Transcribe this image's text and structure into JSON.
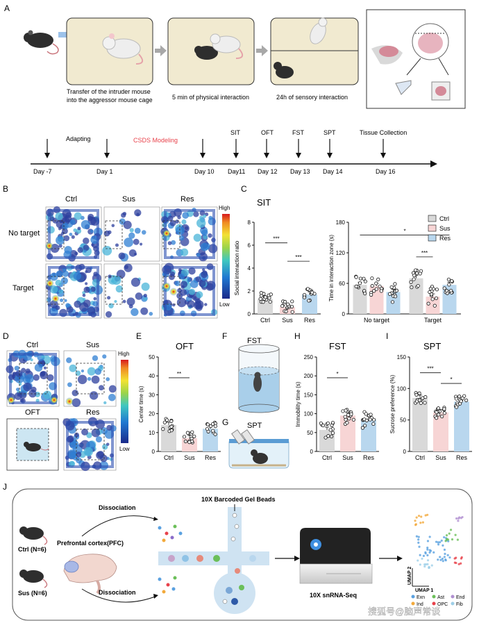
{
  "panels": {
    "A": {
      "letter": "A",
      "step1": [
        "Transfer of the intruder mouse",
        "into the aggressor mouse cage"
      ],
      "step2": "5 min of physical interaction",
      "step3": "24h of sensory interaction",
      "timeline": {
        "top_labels": [
          "Adapting",
          "CSDS Modeling",
          "SIT",
          "OFT",
          "FST",
          "SPT",
          "Tissue Collection"
        ],
        "days": [
          "Day -7",
          "Day 1",
          "Day 10",
          "Day11",
          "Day 12",
          "Day 13",
          "Day 14",
          "Day 16"
        ]
      }
    },
    "B": {
      "letter": "B",
      "cols": [
        "Ctrl",
        "Sus",
        "Res"
      ],
      "rows": [
        "No target",
        "Target"
      ],
      "scale_high": "High",
      "scale_low": "Low"
    },
    "C": {
      "letter": "C",
      "title": "SIT"
    },
    "D": {
      "letter": "D",
      "labels": [
        "Ctrl",
        "Sus",
        "OFT",
        "Res"
      ],
      "scale_high": "High",
      "scale_low": "Low"
    },
    "E": {
      "letter": "E",
      "title": "OFT"
    },
    "F": {
      "letter": "F",
      "title": "FST"
    },
    "G": {
      "letter": "G",
      "title": "SPT"
    },
    "H": {
      "letter": "H",
      "title": "FST"
    },
    "I": {
      "letter": "I",
      "title": "SPT"
    },
    "J": {
      "letter": "J",
      "ctrl_label": "Ctrl (N=6)",
      "sus_label": "Sus (N=6)",
      "pfc_label": "Prefrontal cortex(PFC)",
      "dissociation": "Dissociation",
      "gel_beads": "10X Barcoded Gel Beads",
      "seq_label": "10X snRNA-Seq",
      "umap_x": "UMAP 1",
      "umap_y": "UMAP 2",
      "legend_row1": [
        "Exn",
        "Ast",
        "End"
      ],
      "legend_row2": [
        "Ind",
        "OPC",
        "Fib"
      ],
      "watermark": "搜狐号@脑声常谈"
    }
  },
  "colors": {
    "ctrl": "#d9d9d9",
    "sus": "#f7d5d5",
    "res": "#b9d7ee",
    "csds": "#e8424b"
  },
  "chart_data": [
    {
      "type": "bar",
      "panel": "C-left",
      "title": "SIT",
      "categories": [
        "Ctrl",
        "Sus",
        "Res"
      ],
      "values": [
        1.3,
        0.6,
        1.7
      ],
      "ylabel": "Social interaction ratio",
      "ylim": [
        0,
        8
      ],
      "yticks": [
        0,
        2,
        4,
        6,
        8
      ],
      "significance": [
        "***",
        "***"
      ]
    },
    {
      "type": "bar",
      "panel": "C-right",
      "categories": [
        "No target",
        "Target"
      ],
      "series": [
        {
          "name": "Ctrl",
          "values": [
            57,
            70
          ]
        },
        {
          "name": "Sus",
          "values": [
            55,
            34
          ]
        },
        {
          "name": "Res",
          "values": [
            43,
            57
          ]
        }
      ],
      "ylabel": "Time in interaction zone (s)",
      "ylim": [
        0,
        180
      ],
      "yticks": [
        0,
        60,
        120,
        180
      ],
      "significance": [
        "*",
        "***"
      ]
    },
    {
      "type": "bar",
      "panel": "E",
      "title": "OFT",
      "categories": [
        "Ctrl",
        "Sus",
        "Res"
      ],
      "values": [
        14,
        7,
        12
      ],
      "ylabel": "Center time (s)",
      "ylim": [
        0,
        50
      ],
      "yticks": [
        0,
        10,
        20,
        30,
        40,
        50
      ],
      "significance": [
        "**"
      ]
    },
    {
      "type": "bar",
      "panel": "H",
      "title": "FST",
      "categories": [
        "Ctrl",
        "Sus",
        "Res"
      ],
      "values": [
        57,
        95,
        85
      ],
      "ylabel": "Immobility time (s)",
      "ylim": [
        0,
        250
      ],
      "yticks": [
        0,
        50,
        100,
        150,
        200,
        250
      ],
      "significance": [
        "*"
      ]
    },
    {
      "type": "bar",
      "panel": "I",
      "title": "SPT",
      "categories": [
        "Ctrl",
        "Sus",
        "Res"
      ],
      "values": [
        85,
        62,
        79
      ],
      "ylabel": "Sucrose preference (%)",
      "ylim": [
        0,
        150
      ],
      "yticks": [
        0,
        50,
        100,
        150
      ],
      "significance": [
        "***",
        "*"
      ]
    }
  ]
}
